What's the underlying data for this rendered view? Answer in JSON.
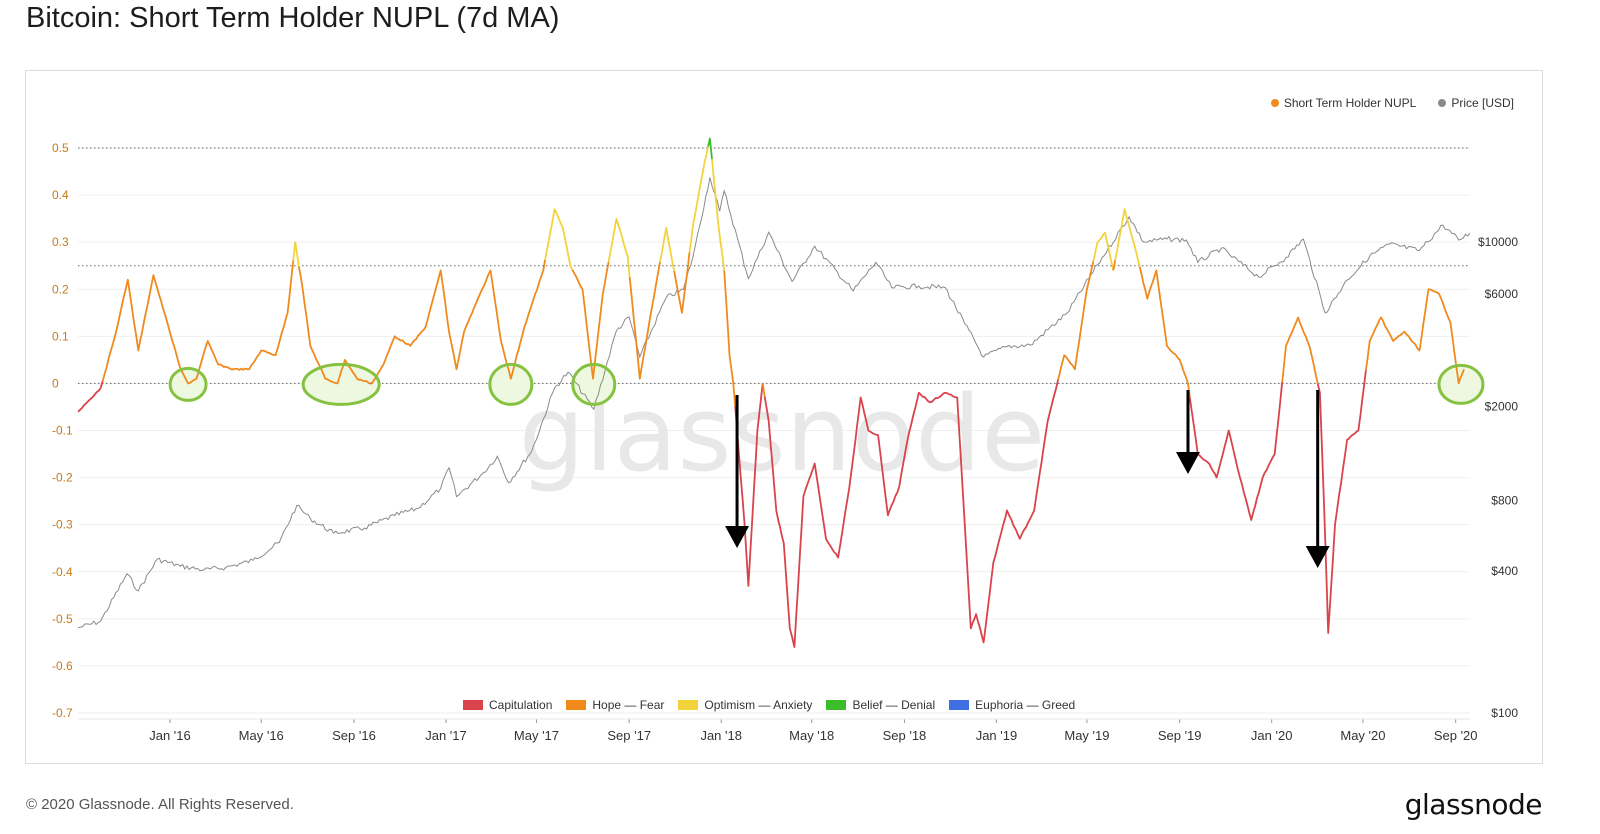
{
  "title": "Bitcoin: Short Term Holder NUPL (7d MA)",
  "footer": "© 2020 Glassnode. All Rights Reserved.",
  "brand": "glassnode",
  "watermark": "glassnode",
  "colors": {
    "capitulation": "#d9434b",
    "hope_fear": "#f08a1d",
    "optimism_anxiety": "#f3d33c",
    "belief_denial": "#3cbd2c",
    "euphoria_greed": "#3f6fe0",
    "price": "#8a8a8a",
    "circle": "#84c23f",
    "arrow": "#000000",
    "left_tick": "#c47b1a"
  },
  "legend_top": [
    {
      "label": "Short Term Holder NUPL",
      "color": "#f08a1d"
    },
    {
      "label": "Price [USD]",
      "color": "#8a8a8a"
    }
  ],
  "legend_bottom": [
    {
      "label": "Capitulation",
      "color": "#d9434b"
    },
    {
      "label": "Hope — Fear",
      "color": "#f08a1d"
    },
    {
      "label": "Optimism — Anxiety",
      "color": "#f3d33c"
    },
    {
      "label": "Belief — Denial",
      "color": "#3cbd2c"
    },
    {
      "label": "Euphoria — Greed",
      "color": "#3f6fe0"
    }
  ],
  "chart_data": {
    "type": "line",
    "x_range": [
      "2015-09-01",
      "2020-09-20"
    ],
    "x_ticks": [
      "Jan '16",
      "May '16",
      "Sep '16",
      "Jan '17",
      "May '17",
      "Sep '17",
      "Jan '18",
      "May '18",
      "Sep '18",
      "Jan '19",
      "May '19",
      "Sep '19",
      "Jan '20",
      "May '20",
      "Sep '20"
    ],
    "x_tick_dates": [
      "2016-01-01",
      "2016-05-01",
      "2016-09-01",
      "2017-01-01",
      "2017-05-01",
      "2017-09-01",
      "2018-01-01",
      "2018-05-01",
      "2018-09-01",
      "2019-01-01",
      "2019-05-01",
      "2019-09-01",
      "2020-01-01",
      "2020-05-01",
      "2020-09-01"
    ],
    "y_left": {
      "ticks": [
        "0.5",
        "0.4",
        "0.3",
        "0.2",
        "0.1",
        "0",
        "-0.1",
        "-0.2",
        "-0.3",
        "-0.4",
        "-0.5",
        "-0.6",
        "-0.7"
      ],
      "range": [
        -0.7,
        0.5
      ]
    },
    "y_right": {
      "ticks": [
        "$10000",
        "$6000",
        "$2000",
        "$800",
        "$400",
        "$100"
      ],
      "tick_values": [
        10000,
        6000,
        2000,
        800,
        400,
        100
      ],
      "scale": "log"
    },
    "reference_lines": [
      0.5,
      0.25,
      0
    ],
    "series": [
      {
        "name": "Short Term Holder NUPL",
        "axis": "left",
        "points": [
          [
            "2015-09-01",
            -0.06
          ],
          [
            "2015-10-01",
            -0.01
          ],
          [
            "2015-10-20",
            0.1
          ],
          [
            "2015-11-06",
            0.22
          ],
          [
            "2015-11-20",
            0.07
          ],
          [
            "2015-12-10",
            0.23
          ],
          [
            "2015-12-30",
            0.12
          ],
          [
            "2016-01-15",
            0.03
          ],
          [
            "2016-01-25",
            0.0
          ],
          [
            "2016-02-05",
            0.01
          ],
          [
            "2016-02-20",
            0.09
          ],
          [
            "2016-03-05",
            0.04
          ],
          [
            "2016-03-25",
            0.03
          ],
          [
            "2016-04-15",
            0.03
          ],
          [
            "2016-05-01",
            0.07
          ],
          [
            "2016-05-20",
            0.06
          ],
          [
            "2016-06-05",
            0.15
          ],
          [
            "2016-06-15",
            0.3
          ],
          [
            "2016-06-25",
            0.2
          ],
          [
            "2016-07-05",
            0.08
          ],
          [
            "2016-07-25",
            0.01
          ],
          [
            "2016-08-10",
            0.0
          ],
          [
            "2016-08-20",
            0.05
          ],
          [
            "2016-09-05",
            0.01
          ],
          [
            "2016-09-25",
            0.0
          ],
          [
            "2016-10-10",
            0.04
          ],
          [
            "2016-10-25",
            0.1
          ],
          [
            "2016-11-15",
            0.08
          ],
          [
            "2016-12-05",
            0.12
          ],
          [
            "2016-12-25",
            0.24
          ],
          [
            "2017-01-05",
            0.11
          ],
          [
            "2017-01-15",
            0.03
          ],
          [
            "2017-01-25",
            0.11
          ],
          [
            "2017-02-10",
            0.17
          ],
          [
            "2017-03-01",
            0.24
          ],
          [
            "2017-03-15",
            0.09
          ],
          [
            "2017-03-28",
            0.01
          ],
          [
            "2017-04-15",
            0.12
          ],
          [
            "2017-05-10",
            0.24
          ],
          [
            "2017-05-25",
            0.37
          ],
          [
            "2017-06-05",
            0.33
          ],
          [
            "2017-06-15",
            0.25
          ],
          [
            "2017-07-01",
            0.2
          ],
          [
            "2017-07-15",
            0.01
          ],
          [
            "2017-07-28",
            0.19
          ],
          [
            "2017-08-15",
            0.35
          ],
          [
            "2017-08-30",
            0.27
          ],
          [
            "2017-09-15",
            0.01
          ],
          [
            "2017-10-01",
            0.16
          ],
          [
            "2017-10-20",
            0.33
          ],
          [
            "2017-11-10",
            0.15
          ],
          [
            "2017-11-25",
            0.34
          ],
          [
            "2017-12-10",
            0.47
          ],
          [
            "2017-12-17",
            0.52
          ],
          [
            "2017-12-28",
            0.34
          ],
          [
            "2018-01-05",
            0.24
          ],
          [
            "2018-01-12",
            0.06
          ],
          [
            "2018-01-17",
            0.0
          ],
          [
            "2018-01-22",
            -0.1
          ],
          [
            "2018-02-01",
            -0.3
          ],
          [
            "2018-02-06",
            -0.43
          ],
          [
            "2018-02-18",
            -0.1
          ],
          [
            "2018-02-25",
            0.0
          ],
          [
            "2018-03-05",
            -0.08
          ],
          [
            "2018-03-15",
            -0.27
          ],
          [
            "2018-03-25",
            -0.34
          ],
          [
            "2018-04-02",
            -0.52
          ],
          [
            "2018-04-08",
            -0.56
          ],
          [
            "2018-04-20",
            -0.24
          ],
          [
            "2018-05-05",
            -0.17
          ],
          [
            "2018-05-20",
            -0.33
          ],
          [
            "2018-06-05",
            -0.37
          ],
          [
            "2018-06-20",
            -0.22
          ],
          [
            "2018-07-05",
            -0.03
          ],
          [
            "2018-07-15",
            -0.1
          ],
          [
            "2018-07-28",
            -0.11
          ],
          [
            "2018-08-10",
            -0.28
          ],
          [
            "2018-08-25",
            -0.22
          ],
          [
            "2018-09-05",
            -0.12
          ],
          [
            "2018-09-20",
            -0.02
          ],
          [
            "2018-10-05",
            -0.04
          ],
          [
            "2018-10-25",
            -0.02
          ],
          [
            "2018-11-10",
            -0.03
          ],
          [
            "2018-11-20",
            -0.3
          ],
          [
            "2018-11-28",
            -0.52
          ],
          [
            "2018-12-05",
            -0.49
          ],
          [
            "2018-12-15",
            -0.55
          ],
          [
            "2018-12-28",
            -0.38
          ],
          [
            "2019-01-15",
            -0.27
          ],
          [
            "2019-02-01",
            -0.33
          ],
          [
            "2019-02-20",
            -0.27
          ],
          [
            "2019-03-10",
            -0.08
          ],
          [
            "2019-04-01",
            0.06
          ],
          [
            "2019-04-15",
            0.03
          ],
          [
            "2019-05-01",
            0.2
          ],
          [
            "2019-05-15",
            0.3
          ],
          [
            "2019-05-25",
            0.32
          ],
          [
            "2019-06-05",
            0.24
          ],
          [
            "2019-06-20",
            0.37
          ],
          [
            "2019-07-05",
            0.28
          ],
          [
            "2019-07-20",
            0.18
          ],
          [
            "2019-08-01",
            0.24
          ],
          [
            "2019-08-15",
            0.08
          ],
          [
            "2019-09-01",
            0.05
          ],
          [
            "2019-09-12",
            0.0
          ],
          [
            "2019-09-25",
            -0.15
          ],
          [
            "2019-10-10",
            -0.17
          ],
          [
            "2019-10-20",
            -0.2
          ],
          [
            "2019-11-05",
            -0.1
          ],
          [
            "2019-11-20",
            -0.2
          ],
          [
            "2019-12-05",
            -0.29
          ],
          [
            "2019-12-20",
            -0.2
          ],
          [
            "2020-01-05",
            -0.15
          ],
          [
            "2020-01-20",
            0.08
          ],
          [
            "2020-02-05",
            0.14
          ],
          [
            "2020-02-20",
            0.08
          ],
          [
            "2020-03-05",
            -0.02
          ],
          [
            "2020-03-12",
            -0.33
          ],
          [
            "2020-03-16",
            -0.53
          ],
          [
            "2020-03-25",
            -0.3
          ],
          [
            "2020-04-10",
            -0.12
          ],
          [
            "2020-04-25",
            -0.1
          ],
          [
            "2020-05-10",
            0.09
          ],
          [
            "2020-05-25",
            0.14
          ],
          [
            "2020-06-10",
            0.09
          ],
          [
            "2020-06-25",
            0.11
          ],
          [
            "2020-07-15",
            0.07
          ],
          [
            "2020-07-27",
            0.2
          ],
          [
            "2020-08-10",
            0.19
          ],
          [
            "2020-08-25",
            0.13
          ],
          [
            "2020-09-05",
            0.0
          ],
          [
            "2020-09-12",
            0.03
          ]
        ]
      },
      {
        "name": "Price [USD]",
        "axis": "right",
        "points": [
          [
            "2015-09-01",
            230
          ],
          [
            "2015-10-01",
            245
          ],
          [
            "2015-11-05",
            390
          ],
          [
            "2015-11-20",
            330
          ],
          [
            "2015-12-15",
            450
          ],
          [
            "2016-01-15",
            420
          ],
          [
            "2016-02-15",
            405
          ],
          [
            "2016-03-15",
            415
          ],
          [
            "2016-04-20",
            445
          ],
          [
            "2016-05-25",
            530
          ],
          [
            "2016-06-17",
            760
          ],
          [
            "2016-07-05",
            670
          ],
          [
            "2016-08-05",
            580
          ],
          [
            "2016-09-15",
            610
          ],
          [
            "2016-10-25",
            690
          ],
          [
            "2016-11-25",
            740
          ],
          [
            "2016-12-25",
            900
          ],
          [
            "2017-01-05",
            1100
          ],
          [
            "2017-01-15",
            830
          ],
          [
            "2017-02-20",
            1050
          ],
          [
            "2017-03-10",
            1230
          ],
          [
            "2017-03-25",
            950
          ],
          [
            "2017-04-25",
            1300
          ],
          [
            "2017-05-25",
            2400
          ],
          [
            "2017-06-12",
            2800
          ],
          [
            "2017-07-16",
            1950
          ],
          [
            "2017-08-15",
            4200
          ],
          [
            "2017-09-01",
            4800
          ],
          [
            "2017-09-15",
            3250
          ],
          [
            "2017-10-20",
            5800
          ],
          [
            "2017-11-12",
            6300
          ],
          [
            "2017-11-25",
            8800
          ],
          [
            "2017-12-17",
            18800
          ],
          [
            "2017-12-30",
            13500
          ],
          [
            "2018-01-05",
            16500
          ],
          [
            "2018-02-06",
            7000
          ],
          [
            "2018-03-05",
            11000
          ],
          [
            "2018-04-05",
            6800
          ],
          [
            "2018-05-05",
            9600
          ],
          [
            "2018-06-25",
            6200
          ],
          [
            "2018-07-25",
            8200
          ],
          [
            "2018-08-15",
            6400
          ],
          [
            "2018-09-20",
            6500
          ],
          [
            "2018-10-25",
            6400
          ],
          [
            "2018-11-20",
            4500
          ],
          [
            "2018-12-15",
            3250
          ],
          [
            "2019-01-15",
            3600
          ],
          [
            "2019-02-15",
            3650
          ],
          [
            "2019-04-05",
            5000
          ],
          [
            "2019-05-15",
            8000
          ],
          [
            "2019-06-26",
            12800
          ],
          [
            "2019-07-15",
            10000
          ],
          [
            "2019-08-15",
            10300
          ],
          [
            "2019-09-10",
            10200
          ],
          [
            "2019-09-25",
            8200
          ],
          [
            "2019-10-26",
            9400
          ],
          [
            "2019-12-15",
            7100
          ],
          [
            "2020-01-20",
            8600
          ],
          [
            "2020-02-12",
            10300
          ],
          [
            "2020-03-12",
            5000
          ],
          [
            "2020-04-10",
            6900
          ],
          [
            "2020-05-10",
            8700
          ],
          [
            "2020-06-05",
            9800
          ],
          [
            "2020-07-15",
            9200
          ],
          [
            "2020-08-15",
            11800
          ],
          [
            "2020-09-05",
            10200
          ],
          [
            "2020-09-20",
            10900
          ]
        ]
      }
    ],
    "zone_colors": [
      {
        "label": "Capitulation",
        "below": 0,
        "color": "#d9434b"
      },
      {
        "label": "Hope — Fear",
        "from": 0,
        "to": 0.25,
        "color": "#f08a1d"
      },
      {
        "label": "Optimism — Anxiety",
        "from": 0.25,
        "to": 0.5,
        "color": "#f3d33c"
      },
      {
        "label": "Belief — Denial",
        "from": 0.5,
        "to": 0.75,
        "color": "#3cbd2c"
      },
      {
        "label": "Euphoria — Greed",
        "above": 0.75,
        "color": "#3f6fe0"
      }
    ],
    "circled_dates": [
      "2016-01-25",
      "2016-08-15",
      "2017-03-28",
      "2017-07-16",
      "2020-09-08"
    ],
    "arrow_dates": [
      "2018-01-22",
      "2019-09-12",
      "2020-03-02"
    ]
  }
}
